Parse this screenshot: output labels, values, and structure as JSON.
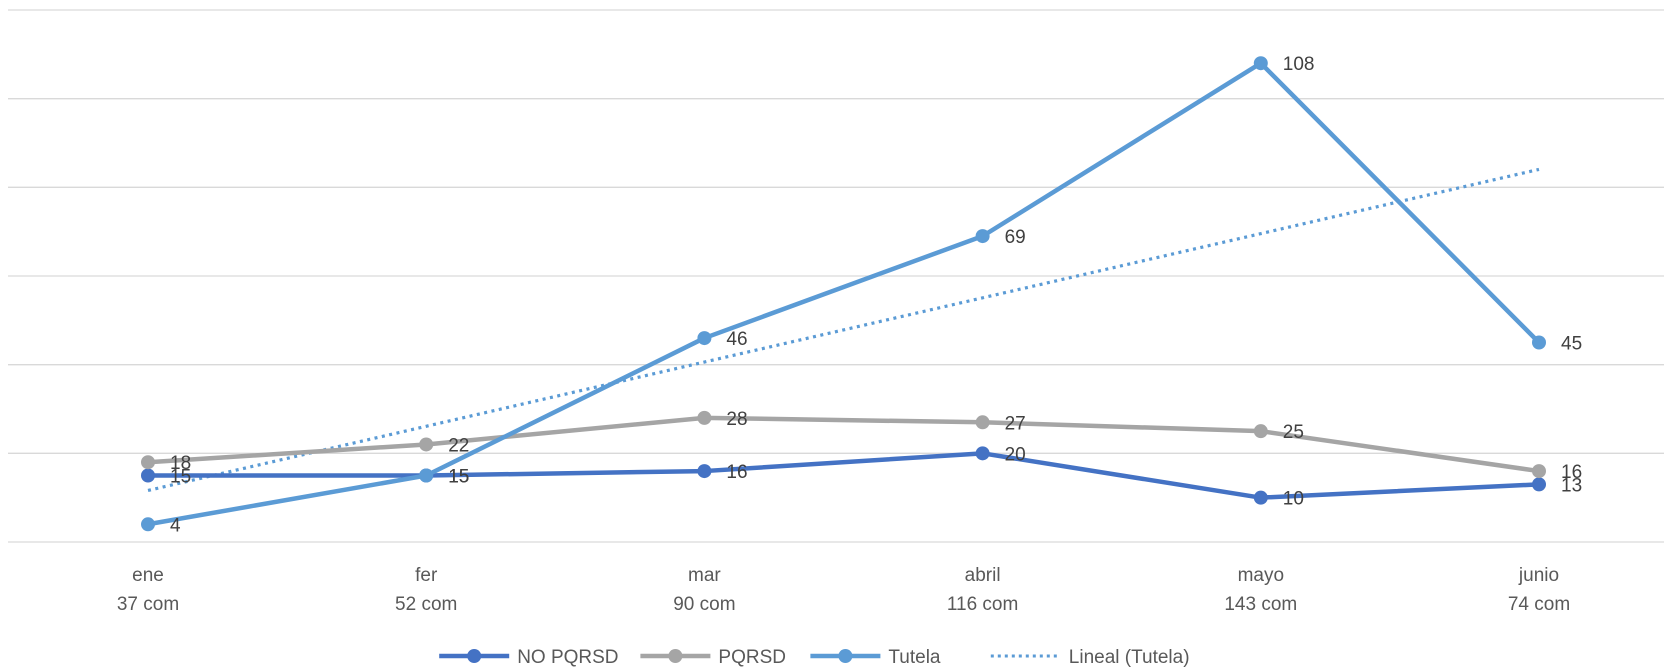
{
  "chart_data": {
    "type": "line",
    "title": "",
    "xlabel": "",
    "ylabel": "",
    "ylim": [
      0,
      120
    ],
    "grid": true,
    "legend_position": "bottom",
    "categories": [
      {
        "label": "ene",
        "sub": "37 com"
      },
      {
        "label": "fer",
        "sub": "52 com"
      },
      {
        "label": "mar",
        "sub": "90 com"
      },
      {
        "label": "abril",
        "sub": "116 com"
      },
      {
        "label": "mayo",
        "sub": "143 com"
      },
      {
        "label": "junio",
        "sub": "74 com"
      }
    ],
    "series": [
      {
        "name": "NO PQRSD",
        "color": "#4472c4",
        "values": [
          15,
          15,
          16,
          20,
          10,
          13
        ]
      },
      {
        "name": "PQRSD",
        "color": "#a5a5a5",
        "values": [
          18,
          22,
          28,
          27,
          25,
          16
        ]
      },
      {
        "name": "Tutela",
        "color": "#5b9bd5",
        "values": [
          4,
          15,
          46,
          69,
          108,
          45
        ]
      }
    ],
    "trendline": {
      "name": "Lineal (Tutela)",
      "color": "#5b9bd5",
      "of_series": "Tutela",
      "style": "dotted"
    }
  }
}
